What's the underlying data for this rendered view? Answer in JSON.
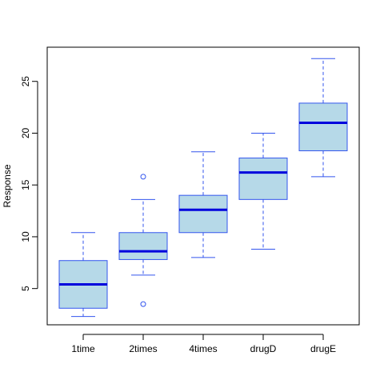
{
  "chart_data": {
    "type": "boxplot",
    "title": "",
    "xlabel": "",
    "ylabel": "Response",
    "ylim": [
      1.5,
      28.3
    ],
    "yticks": [
      5,
      10,
      15,
      20,
      25
    ],
    "categories": [
      "1time",
      "2times",
      "4times",
      "drugD",
      "drugE"
    ],
    "boxes": [
      {
        "whisker_low": 2.3,
        "q1": 3.1,
        "median": 5.4,
        "q3": 7.7,
        "whisker_high": 10.4,
        "outliers": []
      },
      {
        "whisker_low": 6.3,
        "q1": 7.8,
        "median": 8.6,
        "q3": 10.4,
        "whisker_high": 13.6,
        "outliers": [
          3.5,
          15.8
        ]
      },
      {
        "whisker_low": 8.0,
        "q1": 10.4,
        "median": 12.6,
        "q3": 14.0,
        "whisker_high": 18.2,
        "outliers": []
      },
      {
        "whisker_low": 8.8,
        "q1": 13.6,
        "median": 16.2,
        "q3": 17.6,
        "whisker_high": 20.0,
        "outliers": []
      },
      {
        "whisker_low": 15.8,
        "q1": 18.3,
        "median": 21.0,
        "q3": 22.9,
        "whisker_high": 27.2,
        "outliers": []
      }
    ],
    "colors": {
      "box_fill": "#b6d9e8",
      "box_border": "#3355ee",
      "median": "#0000dd",
      "whisker": "#3355ee",
      "outlier": "#3355ee",
      "frame": "#000000"
    },
    "grid": false,
    "legend": "none"
  }
}
